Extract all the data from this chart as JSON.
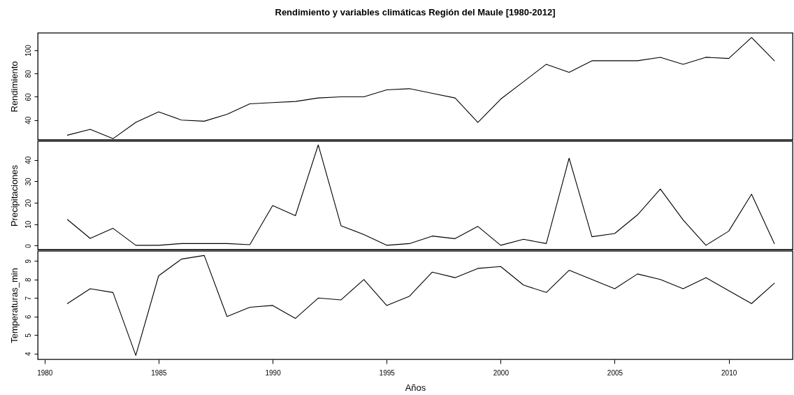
{
  "chart_data": [
    {
      "type": "line",
      "title": "Rendimiento y variables climáticas Región del Maule [1980-2012]",
      "ylabel": "Rendimiento",
      "x": [
        1981,
        1982,
        1983,
        1984,
        1985,
        1986,
        1987,
        1988,
        1989,
        1990,
        1991,
        1992,
        1993,
        1994,
        1995,
        1996,
        1997,
        1998,
        1999,
        2000,
        2001,
        2002,
        2003,
        2004,
        2005,
        2006,
        2007,
        2008,
        2009,
        2010,
        2011,
        2012
      ],
      "series": [
        {
          "color": "#000000",
          "values": [
            27,
            32,
            24,
            38,
            47,
            40,
            39,
            45,
            54,
            55,
            56,
            59,
            60,
            60,
            66,
            67,
            63,
            59,
            38,
            58,
            73,
            88,
            81,
            91,
            91,
            91,
            94,
            88,
            94,
            93,
            111,
            91
          ]
        }
      ],
      "xlim": [
        1979.7,
        2012.8
      ],
      "ylim": [
        23,
        115
      ],
      "yticks": [
        40,
        60,
        80,
        100
      ],
      "tick_labels": "y",
      "grid": false
    },
    {
      "type": "line",
      "ylabel": "Precipitaciones",
      "x": [
        1981,
        1982,
        1983,
        1984,
        1985,
        1986,
        1987,
        1988,
        1989,
        1990,
        1991,
        1992,
        1993,
        1994,
        1995,
        1996,
        1997,
        1998,
        1999,
        2000,
        2001,
        2002,
        2003,
        2004,
        2005,
        2006,
        2007,
        2008,
        2009,
        2010,
        2011,
        2012
      ],
      "series": [
        {
          "color": "#000000",
          "values": [
            12.2,
            3.4,
            8.1,
            0.2,
            0.2,
            1,
            1,
            1,
            0.5,
            18.7,
            14,
            47,
            9.3,
            5.2,
            0.2,
            1,
            4.5,
            3.3,
            9,
            0.2,
            3,
            1,
            40.8,
            4.2,
            5.7,
            14.4,
            26.4,
            12,
            0.2,
            6.8,
            24,
            1
          ]
        }
      ],
      "xlim": [
        1979.7,
        2012.8
      ],
      "ylim": [
        -1.8,
        48.7
      ],
      "yticks": [
        0,
        10,
        20,
        30,
        40
      ],
      "tick_labels": "y",
      "grid": false
    },
    {
      "type": "line",
      "ylabel": "Temperaturas_min",
      "xlabel": "Años",
      "x": [
        1981,
        1982,
        1983,
        1984,
        1985,
        1986,
        1987,
        1988,
        1989,
        1990,
        1991,
        1992,
        1993,
        1994,
        1995,
        1996,
        1997,
        1998,
        1999,
        2000,
        2001,
        2002,
        2003,
        2004,
        2005,
        2006,
        2007,
        2008,
        2009,
        2010,
        2011,
        2012
      ],
      "series": [
        {
          "color": "#000000",
          "values": [
            6.7,
            7.5,
            7.3,
            3.9,
            8.2,
            9.1,
            9.3,
            6.0,
            6.5,
            6.6,
            5.9,
            7.0,
            6.9,
            8.0,
            6.6,
            7.1,
            8.4,
            8.1,
            8.6,
            8.7,
            7.7,
            7.3,
            8.5,
            8.0,
            7.5,
            8.3,
            8.0,
            7.5,
            8.1,
            7.4,
            6.7,
            7.8
          ]
        }
      ],
      "xlim": [
        1979.7,
        2012.8
      ],
      "ylim": [
        3.69,
        9.54
      ],
      "yticks": [
        4,
        5,
        6,
        7,
        8,
        9
      ],
      "xticks": [
        1980,
        1985,
        1990,
        1995,
        2000,
        2005,
        2010
      ],
      "grid": false
    }
  ]
}
